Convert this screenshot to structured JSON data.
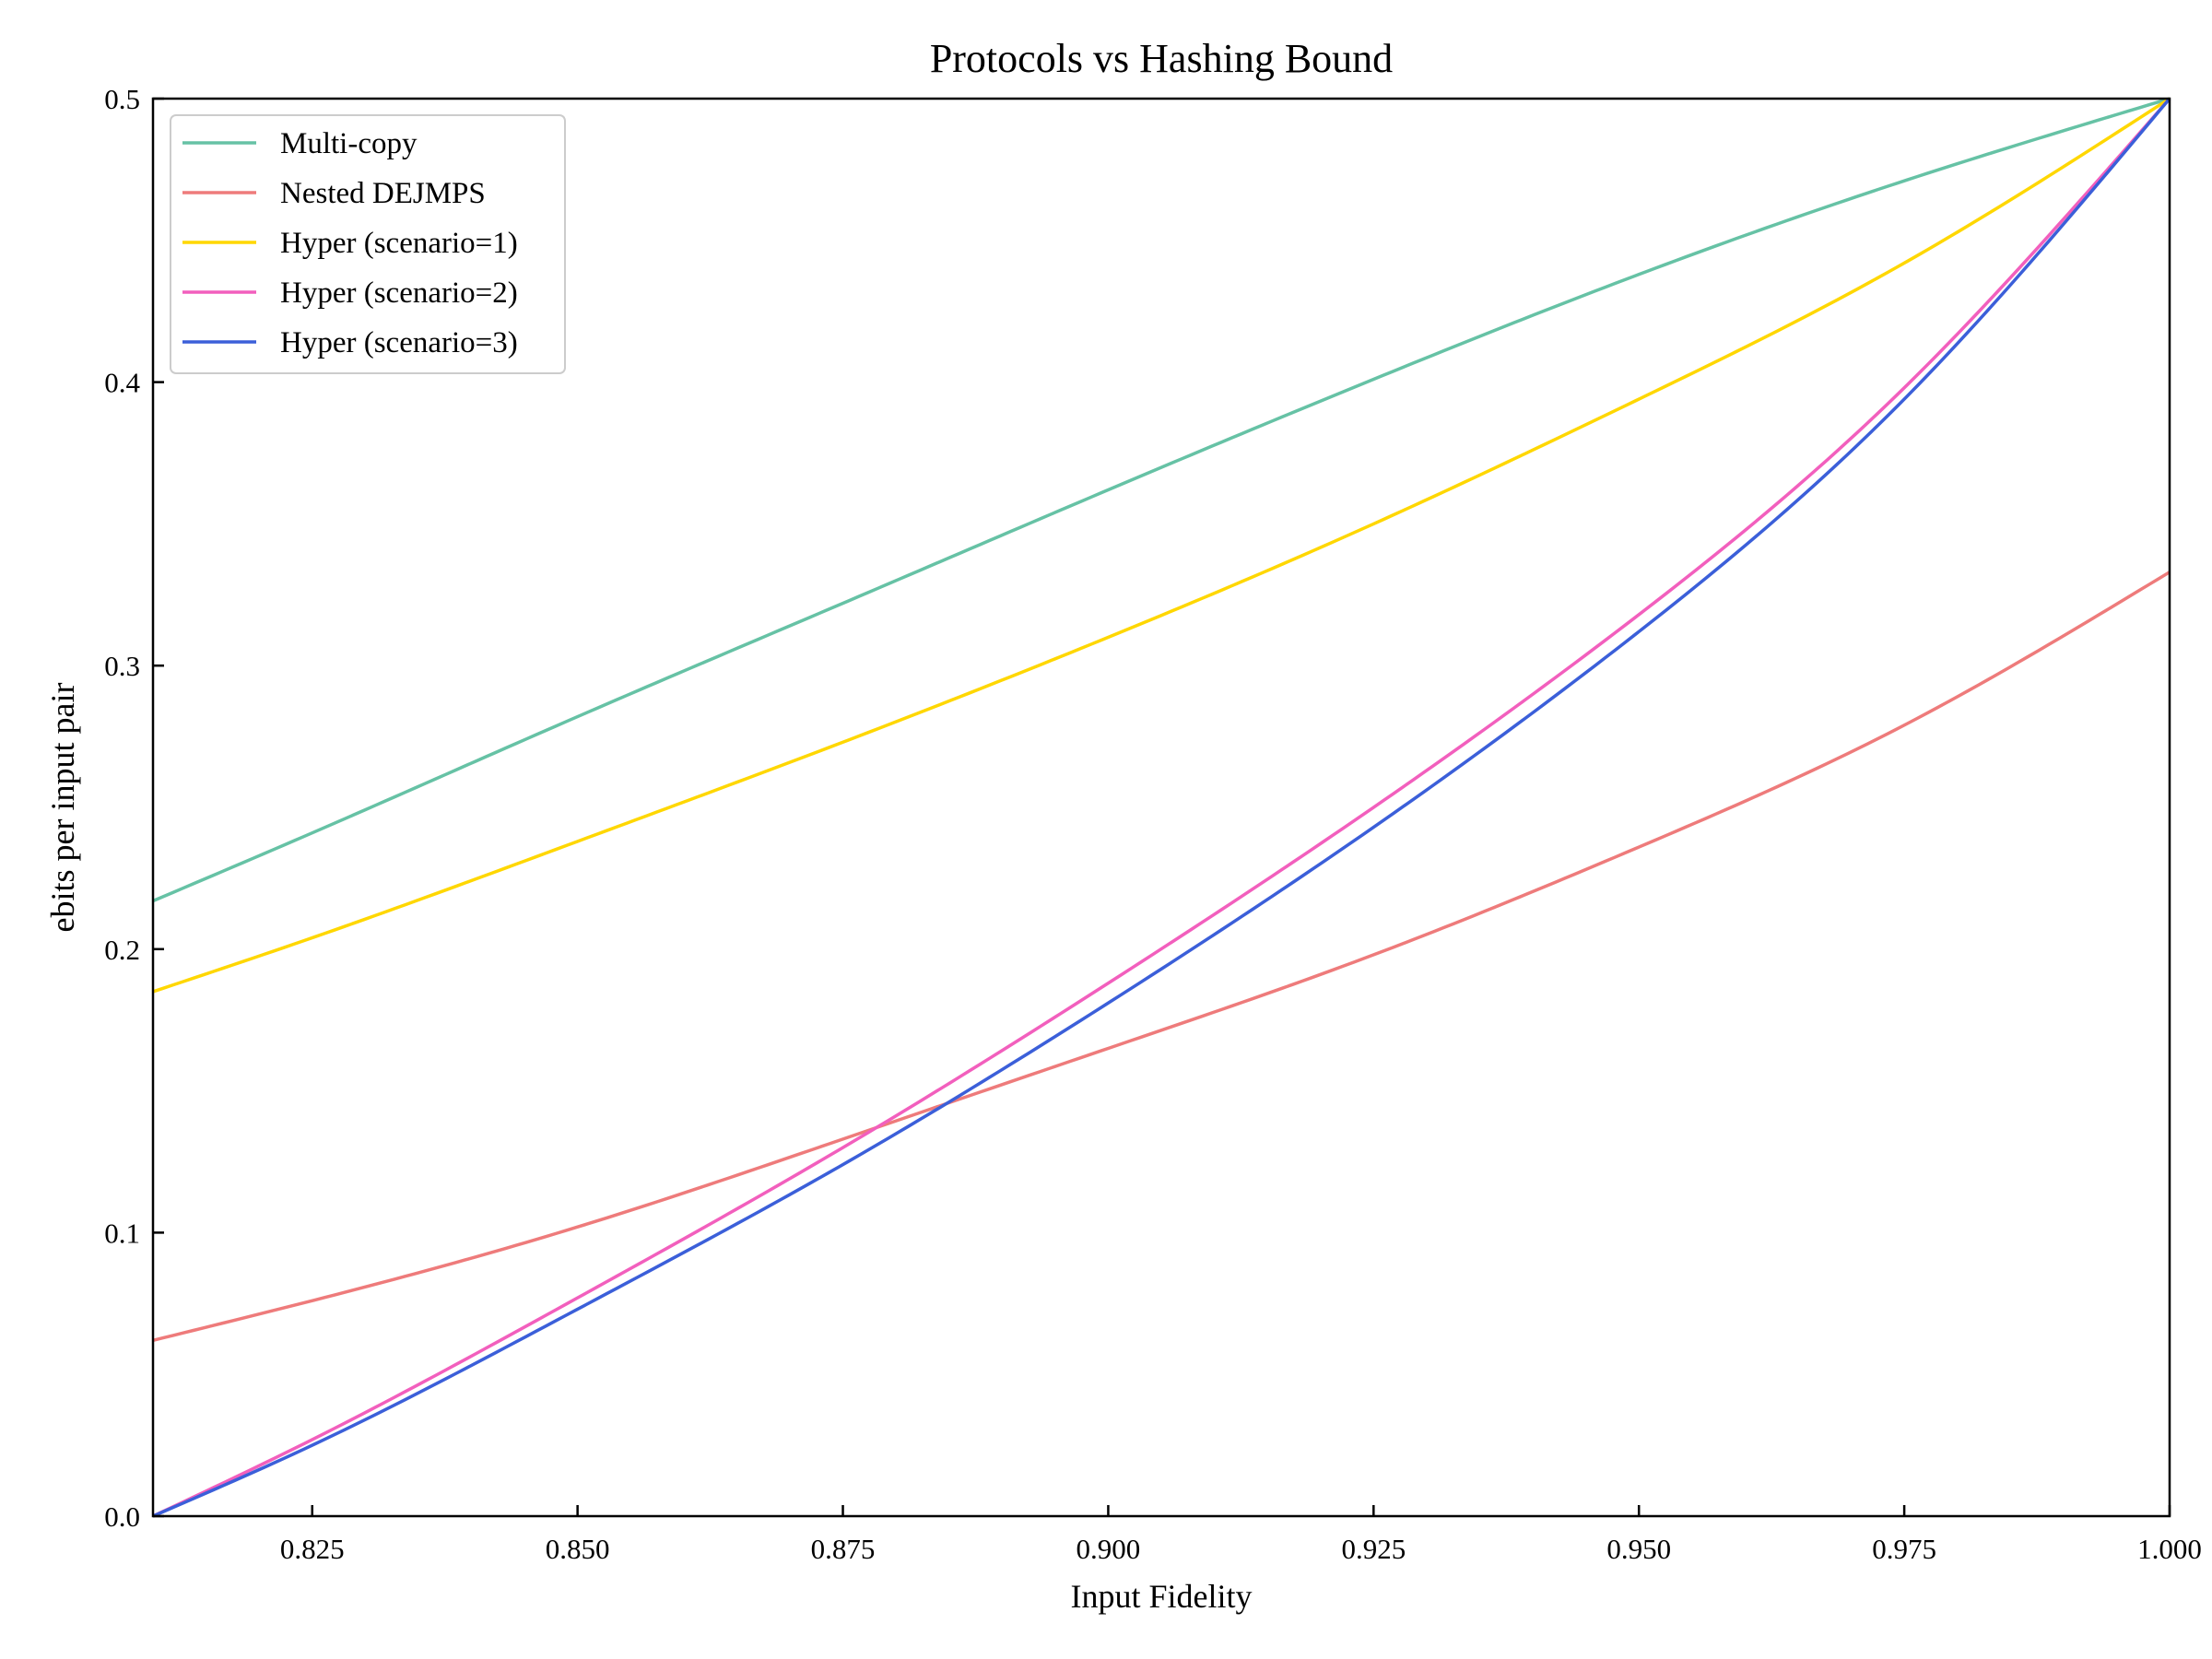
{
  "chart_data": {
    "type": "line",
    "title": "Protocols vs Hashing Bound",
    "xlabel": "Input Fidelity",
    "ylabel": "ebits per input pair",
    "xlim": [
      0.81,
      1.0
    ],
    "ylim": [
      0.0,
      0.5
    ],
    "x_ticks": [
      "0.825",
      "0.850",
      "0.875",
      "0.900",
      "0.925",
      "0.950",
      "0.975",
      "1.000"
    ],
    "y_ticks": [
      "0.0",
      "0.1",
      "0.2",
      "0.3",
      "0.4",
      "0.5"
    ],
    "grid": false,
    "legend_position": "top-left",
    "series": [
      {
        "name": "Multi-copy",
        "color": "#66c2a5",
        "x": [
          0.81,
          0.825,
          0.85,
          0.875,
          0.9,
          0.925,
          0.95,
          0.975,
          1.0
        ],
        "y": [
          0.217,
          0.241,
          0.282,
          0.322,
          0.362,
          0.401,
          0.438,
          0.471,
          0.5
        ]
      },
      {
        "name": "Nested DEJMPS",
        "color": "#ee7b7b",
        "x": [
          0.81,
          0.825,
          0.85,
          0.875,
          0.9,
          0.925,
          0.95,
          0.975,
          1.0
        ],
        "y": [
          0.062,
          0.076,
          0.102,
          0.133,
          0.165,
          0.198,
          0.236,
          0.279,
          0.333
        ]
      },
      {
        "name": "Hyper (scenario=1)",
        "color": "#ffd700",
        "x": [
          0.81,
          0.825,
          0.85,
          0.875,
          0.9,
          0.925,
          0.95,
          0.975,
          1.0
        ],
        "y": [
          0.185,
          0.204,
          0.238,
          0.273,
          0.31,
          0.35,
          0.394,
          0.442,
          0.5
        ]
      },
      {
        "name": "Hyper (scenario=2)",
        "color": "#f25fbd",
        "x": [
          0.81,
          0.825,
          0.85,
          0.875,
          0.9,
          0.925,
          0.95,
          0.975,
          1.0
        ],
        "y": [
          0.0,
          0.027,
          0.077,
          0.13,
          0.188,
          0.25,
          0.318,
          0.398,
          0.5
        ]
      },
      {
        "name": "Hyper (scenario=3)",
        "color": "#3b5fd9",
        "x": [
          0.81,
          0.825,
          0.85,
          0.875,
          0.9,
          0.925,
          0.95,
          0.975,
          1.0
        ],
        "y": [
          0.0,
          0.025,
          0.073,
          0.124,
          0.181,
          0.243,
          0.312,
          0.394,
          0.5
        ]
      }
    ]
  }
}
